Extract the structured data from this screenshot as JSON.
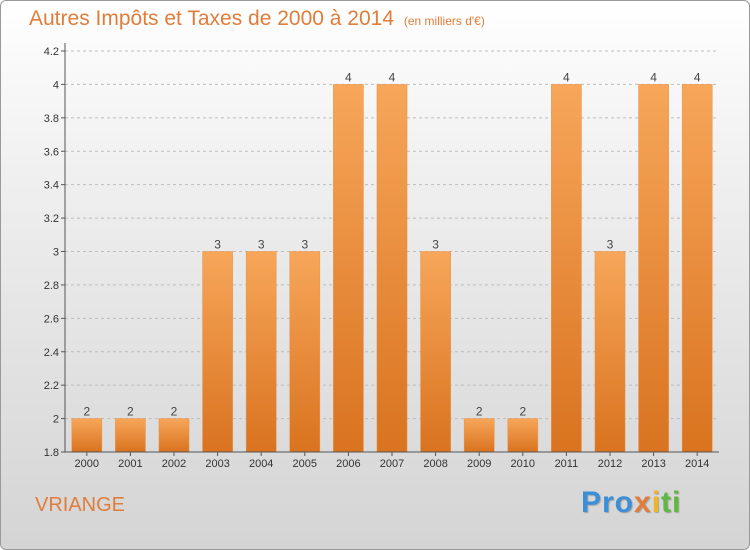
{
  "title": {
    "main": "Autres Impôts et Taxes de 2000 à 2014",
    "sub": "(en milliers d'€)"
  },
  "commune": "VRIANGE",
  "logo": {
    "parts": [
      "Pro",
      "x",
      "i",
      "ti"
    ]
  },
  "colors": {
    "bar_light": "#f7a65a",
    "bar_dark": "#d9731f",
    "title": "#e07d3a"
  },
  "chart_data": {
    "type": "bar",
    "categories": [
      "2000",
      "2001",
      "2002",
      "2003",
      "2004",
      "2005",
      "2006",
      "2007",
      "2008",
      "2009",
      "2010",
      "2011",
      "2012",
      "2013",
      "2014"
    ],
    "values": [
      2,
      2,
      2,
      3,
      3,
      3,
      4,
      4,
      3,
      2,
      2,
      4,
      3,
      4,
      4
    ],
    "data_labels": [
      "2",
      "2",
      "2",
      "3",
      "3",
      "3",
      "4",
      "4",
      "3",
      "2",
      "2",
      "4",
      "3",
      "4",
      "4"
    ],
    "title": "Autres Impôts et Taxes de 2000 à 2014",
    "xlabel": "",
    "ylabel": "",
    "ylim": [
      1.8,
      4.2
    ],
    "yticks": [
      1.8,
      2,
      2.2,
      2.4,
      2.6,
      2.8,
      3,
      3.2,
      3.4,
      3.6,
      3.8,
      4,
      4.2
    ],
    "ytick_labels": [
      "1.8",
      "2",
      "2.2",
      "2.4",
      "2.6",
      "2.8",
      "3",
      "3.2",
      "3.4",
      "3.6",
      "3.8",
      "4",
      "4.2"
    ],
    "grid": "horizontal-dashed",
    "legend": "none"
  }
}
